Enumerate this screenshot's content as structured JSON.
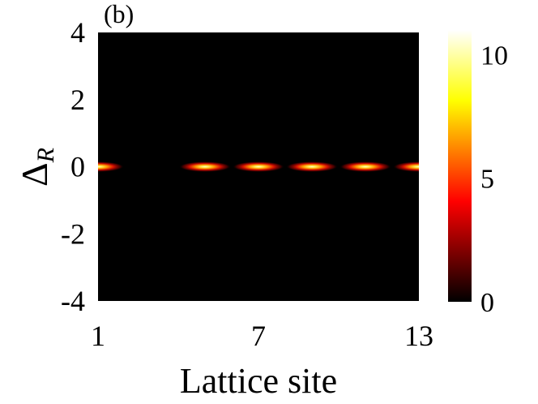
{
  "chart_data": {
    "type": "heatmap",
    "panel_label": "(b)",
    "xlabel": "Lattice site",
    "ylabel_main": "Δ",
    "ylabel_sub": "R",
    "xlim": [
      1,
      13
    ],
    "ylim": [
      -4,
      4
    ],
    "x_ticks": [
      {
        "value": 1,
        "label": "1"
      },
      {
        "value": 7,
        "label": "7"
      },
      {
        "value": 13,
        "label": "13"
      }
    ],
    "y_ticks": [
      {
        "value": 4,
        "label": "4"
      },
      {
        "value": 2,
        "label": "2"
      },
      {
        "value": 0,
        "label": "0"
      },
      {
        "value": -2,
        "label": "-2"
      },
      {
        "value": -4,
        "label": "-4"
      }
    ],
    "colorbar": {
      "range": [
        0,
        11
      ],
      "colormap": "hot",
      "ticks": [
        {
          "value": 10,
          "label": "10"
        },
        {
          "value": 5,
          "label": "5"
        },
        {
          "value": 0,
          "label": "0"
        }
      ]
    },
    "peaks": [
      {
        "site": 1,
        "delta_r": 0,
        "intensity": 11
      },
      {
        "site": 5,
        "delta_r": 0,
        "intensity": 11
      },
      {
        "site": 7,
        "delta_r": 0,
        "intensity": 11
      },
      {
        "site": 9,
        "delta_r": 0,
        "intensity": 11
      },
      {
        "site": 11,
        "delta_r": 0,
        "intensity": 11
      },
      {
        "site": 13,
        "delta_r": 0,
        "intensity": 11
      }
    ]
  }
}
